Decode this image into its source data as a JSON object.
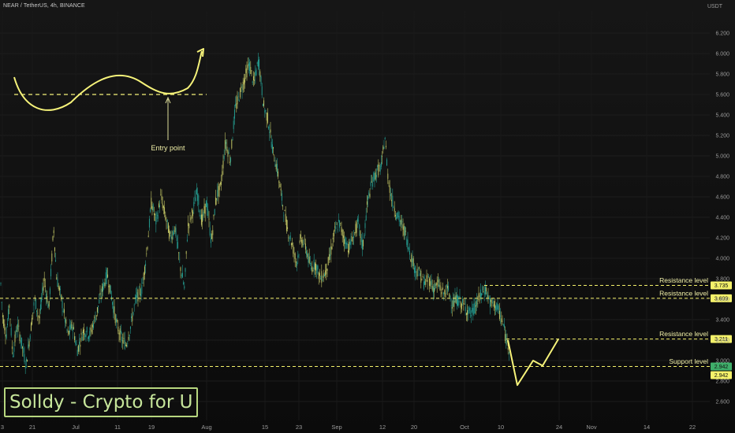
{
  "header": {
    "symbol_line": "NEAR / TetherUS, 4h, BINANCE",
    "currency": "USDT"
  },
  "watermark": "Solldy - Crypto for U",
  "colors": {
    "up": "#26a69a",
    "down": "#cfd26a",
    "level": "#f4f16a",
    "annotation": "#f6f37a",
    "axis_text": "#9a9a9a",
    "badge_bg": "#f4f16a",
    "badge_green": "#3fae6a"
  },
  "chart_data": {
    "type": "candlestick",
    "title": "NEAR / TetherUS, 4h, BINANCE",
    "ylabel": "USDT",
    "ylim": [
      2.45,
      6.45
    ],
    "y_ticks": [
      "6.200",
      "6.000",
      "5.800",
      "5.600",
      "5.400",
      "5.200",
      "5.000",
      "4.800",
      "4.600",
      "4.400",
      "4.200",
      "4.000",
      "3.800",
      "3.600",
      "3.400",
      "3.200",
      "3.000",
      "2.800",
      "2.600"
    ],
    "x_ticks": [
      "3",
      "21",
      "Jul",
      "11",
      "19",
      "Aug",
      "15",
      "23",
      "Sep",
      "12",
      "20",
      "Oct",
      "10",
      "24",
      "Nov",
      "14",
      "22"
    ],
    "price_path": [
      [
        0,
        3.9
      ],
      [
        3,
        3.45
      ],
      [
        8,
        3.25
      ],
      [
        12,
        3.55
      ],
      [
        16,
        3.05
      ],
      [
        22,
        3.35
      ],
      [
        28,
        3.15
      ],
      [
        33,
        2.95
      ],
      [
        38,
        3.25
      ],
      [
        44,
        3.6
      ],
      [
        50,
        3.4
      ],
      [
        56,
        3.8
      ],
      [
        62,
        3.5
      ],
      [
        68,
        4.3
      ],
      [
        72,
        3.8
      ],
      [
        78,
        3.6
      ],
      [
        86,
        3.25
      ],
      [
        92,
        3.35
      ],
      [
        98,
        3.1
      ],
      [
        106,
        3.3
      ],
      [
        114,
        3.25
      ],
      [
        122,
        3.45
      ],
      [
        130,
        3.7
      ],
      [
        136,
        3.85
      ],
      [
        142,
        3.6
      ],
      [
        148,
        3.35
      ],
      [
        155,
        3.2
      ],
      [
        160,
        3.15
      ],
      [
        166,
        3.35
      ],
      [
        172,
        3.6
      ],
      [
        180,
        3.7
      ],
      [
        186,
        4.05
      ],
      [
        192,
        4.55
      ],
      [
        198,
        4.35
      ],
      [
        204,
        4.6
      ],
      [
        210,
        4.4
      ],
      [
        216,
        4.2
      ],
      [
        222,
        4.3
      ],
      [
        228,
        3.95
      ],
      [
        234,
        3.7
      ],
      [
        238,
        4.3
      ],
      [
        244,
        4.45
      ],
      [
        250,
        4.65
      ],
      [
        256,
        4.35
      ],
      [
        262,
        4.55
      ],
      [
        268,
        4.15
      ],
      [
        274,
        4.6
      ],
      [
        280,
        4.7
      ],
      [
        286,
        5.15
      ],
      [
        292,
        4.95
      ],
      [
        298,
        5.45
      ],
      [
        304,
        5.6
      ],
      [
        310,
        5.75
      ],
      [
        316,
        5.9
      ],
      [
        322,
        5.7
      ],
      [
        328,
        5.95
      ],
      [
        334,
        5.5
      ],
      [
        340,
        5.35
      ],
      [
        346,
        5.05
      ],
      [
        352,
        4.85
      ],
      [
        358,
        4.55
      ],
      [
        364,
        4.3
      ],
      [
        370,
        4.15
      ],
      [
        376,
        3.95
      ],
      [
        382,
        4.2
      ],
      [
        388,
        4.1
      ],
      [
        394,
        3.9
      ],
      [
        400,
        3.95
      ],
      [
        406,
        3.8
      ],
      [
        412,
        3.85
      ],
      [
        418,
        4.0
      ],
      [
        424,
        4.25
      ],
      [
        430,
        4.35
      ],
      [
        436,
        4.2
      ],
      [
        442,
        4.1
      ],
      [
        448,
        4.2
      ],
      [
        454,
        4.35
      ],
      [
        460,
        4.1
      ],
      [
        466,
        4.55
      ],
      [
        472,
        4.75
      ],
      [
        478,
        4.85
      ],
      [
        484,
        4.9
      ],
      [
        488,
        5.2
      ],
      [
        492,
        4.8
      ],
      [
        496,
        4.6
      ],
      [
        502,
        4.45
      ],
      [
        508,
        4.35
      ],
      [
        514,
        4.25
      ],
      [
        520,
        4.05
      ],
      [
        526,
        3.9
      ],
      [
        532,
        3.85
      ],
      [
        538,
        3.75
      ],
      [
        544,
        3.8
      ],
      [
        550,
        3.7
      ],
      [
        556,
        3.75
      ],
      [
        562,
        3.65
      ],
      [
        568,
        3.7
      ],
      [
        574,
        3.55
      ],
      [
        580,
        3.6
      ],
      [
        586,
        3.55
      ],
      [
        592,
        3.5
      ],
      [
        598,
        3.45
      ],
      [
        604,
        3.55
      ],
      [
        610,
        3.65
      ],
      [
        616,
        3.7
      ],
      [
        622,
        3.55
      ],
      [
        628,
        3.55
      ],
      [
        634,
        3.45
      ],
      [
        638,
        3.35
      ],
      [
        642,
        3.2
      ],
      [
        646,
        3.12
      ]
    ],
    "levels": [
      {
        "label": "Resistance level",
        "value": 3.735,
        "badge": "3.735",
        "from_x": 614
      },
      {
        "label": "Resistance level",
        "value": 3.609,
        "badge": "3.609",
        "from_x": 0
      },
      {
        "label": "Resistance level",
        "value": 3.211,
        "badge": "3.211",
        "from_x": 642
      },
      {
        "label": "Support level",
        "value": 2.942,
        "badge": "2.942",
        "from_x": 0
      }
    ],
    "support_secondary_badge": "2.942",
    "projection": [
      [
        644,
        3.2
      ],
      [
        656,
        2.76
      ],
      [
        676,
        3.0
      ],
      [
        688,
        2.95
      ],
      [
        708,
        3.21
      ]
    ],
    "annotations": {
      "entry_point": "Entry point"
    }
  }
}
